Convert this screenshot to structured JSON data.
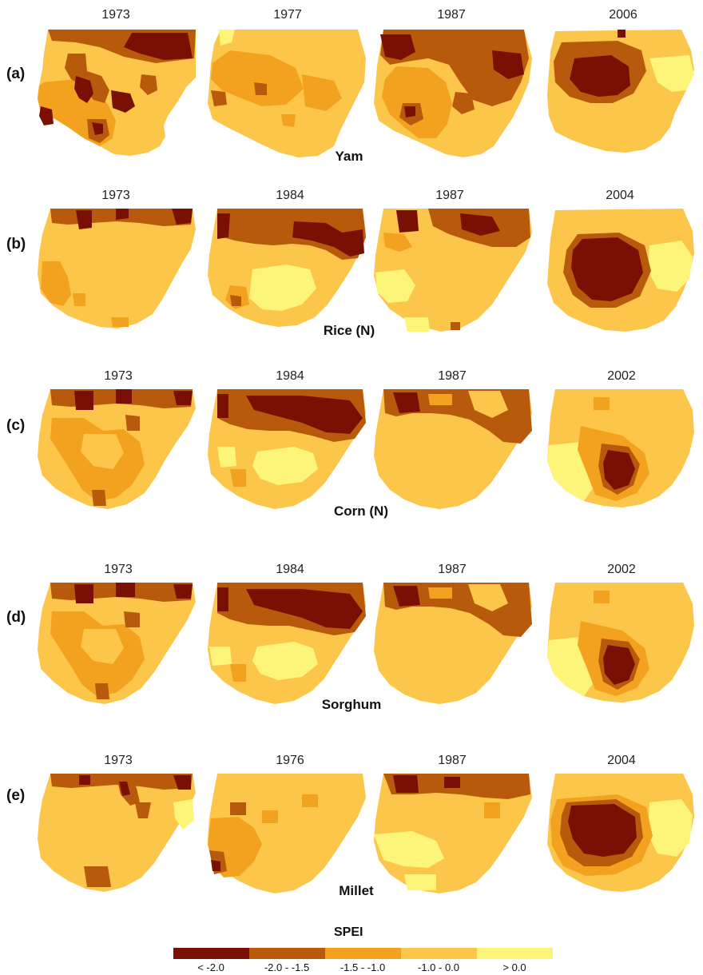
{
  "panels": [
    {
      "label": "(a)",
      "crop": "Yam",
      "years": [
        "1973",
        "1977",
        "1987",
        "2006"
      ]
    },
    {
      "label": "(b)",
      "crop": "Rice (N)",
      "years": [
        "1973",
        "1984",
        "1987",
        "2004"
      ]
    },
    {
      "label": "(c)",
      "crop": "Corn (N)",
      "years": [
        "1973",
        "1984",
        "1987",
        "2002"
      ]
    },
    {
      "label": "(d)",
      "crop": "Sorghum",
      "years": [
        "1973",
        "1984",
        "1987",
        "2002"
      ]
    },
    {
      "label": "(e)",
      "crop": "Millet",
      "years": [
        "1973",
        "1976",
        "1987",
        "2004"
      ]
    }
  ],
  "legend": {
    "title": "SPEI",
    "classes": [
      {
        "label": "< -2.0",
        "color": "#7a1003"
      },
      {
        "label": "-2.0 - -1.5",
        "color": "#b85a0c"
      },
      {
        "label": "-1.5 - -1.0",
        "color": "#f2a21e"
      },
      {
        "label": "-1.0 - 0.0",
        "color": "#fcc64a"
      },
      {
        "label": "> 0.0",
        "color": "#fdf57a"
      }
    ]
  }
}
